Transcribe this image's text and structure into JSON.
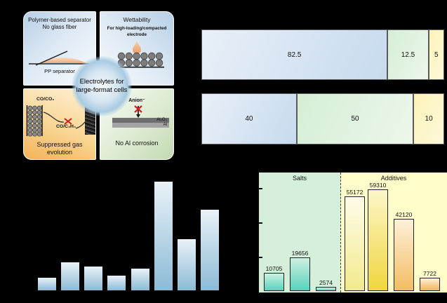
{
  "panel": {
    "center_label": [
      "Electrolytes for",
      "large-format cells"
    ],
    "quadrants": {
      "separator": {
        "title": [
          "Polymer-based separator",
          "No glass fiber"
        ],
        "caption": "PP separator"
      },
      "wettability": {
        "title": "Wettability",
        "subtitle": [
          "For high-loading/compacted",
          "electrode"
        ]
      },
      "gas": {
        "labels": [
          "CO/CO₂",
          "CO/C₂H₄"
        ],
        "caption": [
          "Suppressed gas",
          "evolution"
        ]
      },
      "corrosion": {
        "anion_label": "Anion⁻",
        "layer_labels": [
          "Al₂O₃",
          "Al"
        ],
        "caption": "No Al corrosion"
      }
    }
  },
  "chart_data": [
    {
      "type": "bar",
      "variant": "horizontal_stacked",
      "rows": [
        {
          "values": [
            82.5,
            12.5,
            5
          ]
        },
        {
          "values": [
            40,
            50,
            10
          ]
        }
      ],
      "segment_gradients": [
        [
          "#e8f0f8",
          "#c7daee"
        ],
        [
          "#d5eed5",
          "#edf7eb"
        ],
        [
          "#fdf3b8",
          "#fdf9da"
        ]
      ],
      "note": "axis/category labels are black text on black background and not visible"
    },
    {
      "type": "bar",
      "values_pct_of_max": [
        11.6,
        25.8,
        21.9,
        13.5,
        20.0,
        100,
        47.1,
        74.2
      ],
      "bar_gradient": [
        "#e9f2f8",
        "#8cbad5"
      ],
      "note": "8 bars; axis and tick labels invisible (black on black); values estimated as % of tallest bar"
    },
    {
      "type": "bar",
      "groups": [
        {
          "label": "Salts",
          "zone_color": "#d5efda",
          "values": [
            10705,
            19656,
            2574
          ],
          "bar_gradient": [
            "#cff0e2",
            "#57d2bc"
          ]
        },
        {
          "label": "Additives",
          "zone_color": "#fffdc9",
          "values": [
            55172,
            59310,
            42120,
            7722
          ],
          "bar_gradients": [
            [
              "#fefce8",
              "#f2ea8e"
            ],
            [
              "#fdf6c8",
              "#f0d63e"
            ],
            [
              "#fdf0d8",
              "#f3bd62"
            ],
            [
              "#fdf0d8",
              "#f5b358"
            ]
          ]
        }
      ],
      "ylim": [
        0,
        69500
      ],
      "yticks": [
        20000,
        40000,
        60000
      ],
      "note": "y tick labels invisible (black on black)"
    }
  ]
}
